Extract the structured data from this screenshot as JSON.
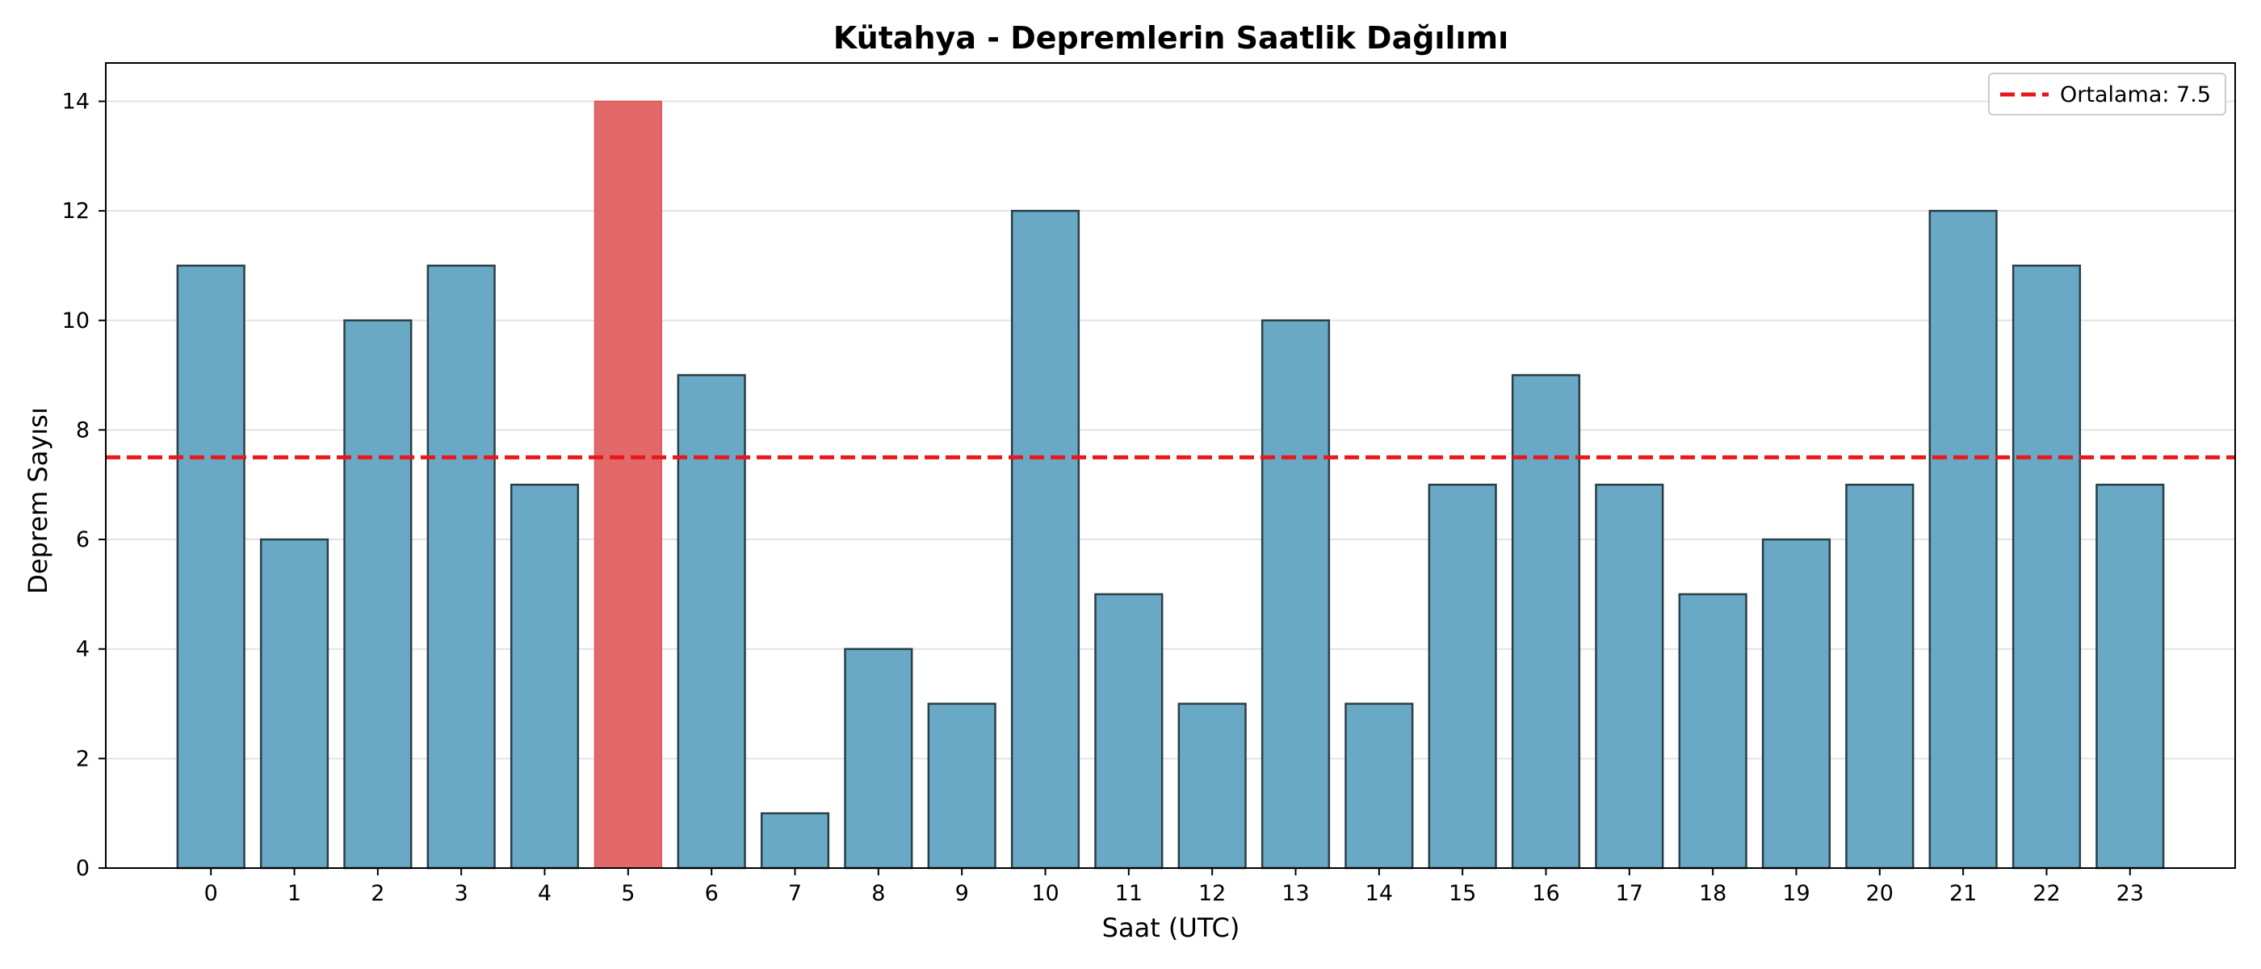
{
  "chart_data": {
    "type": "bar",
    "title": "Kütahya - Depremlerin Saatlik Dağılımı",
    "xlabel": "Saat (UTC)",
    "ylabel": "Deprem Sayısı",
    "categories": [
      "0",
      "1",
      "2",
      "3",
      "4",
      "5",
      "6",
      "7",
      "8",
      "9",
      "10",
      "11",
      "12",
      "13",
      "14",
      "15",
      "16",
      "17",
      "18",
      "19",
      "20",
      "21",
      "22",
      "23"
    ],
    "values": [
      11,
      6,
      10,
      11,
      7,
      14,
      9,
      1,
      4,
      3,
      12,
      5,
      3,
      10,
      3,
      7,
      9,
      7,
      5,
      6,
      7,
      12,
      11,
      7
    ],
    "ylim": [
      0,
      14.7
    ],
    "yticks": [
      "0",
      "2",
      "4",
      "6",
      "8",
      "10",
      "12",
      "14"
    ],
    "grid": "y",
    "bar_color": "#6aa9c5",
    "highlight_color": "#e36869",
    "highlight_index": 5,
    "mean_line": {
      "value": 7.5,
      "color": "#e8191c",
      "label": "Ortalama: 7.5"
    },
    "legend_position": "top-right"
  }
}
